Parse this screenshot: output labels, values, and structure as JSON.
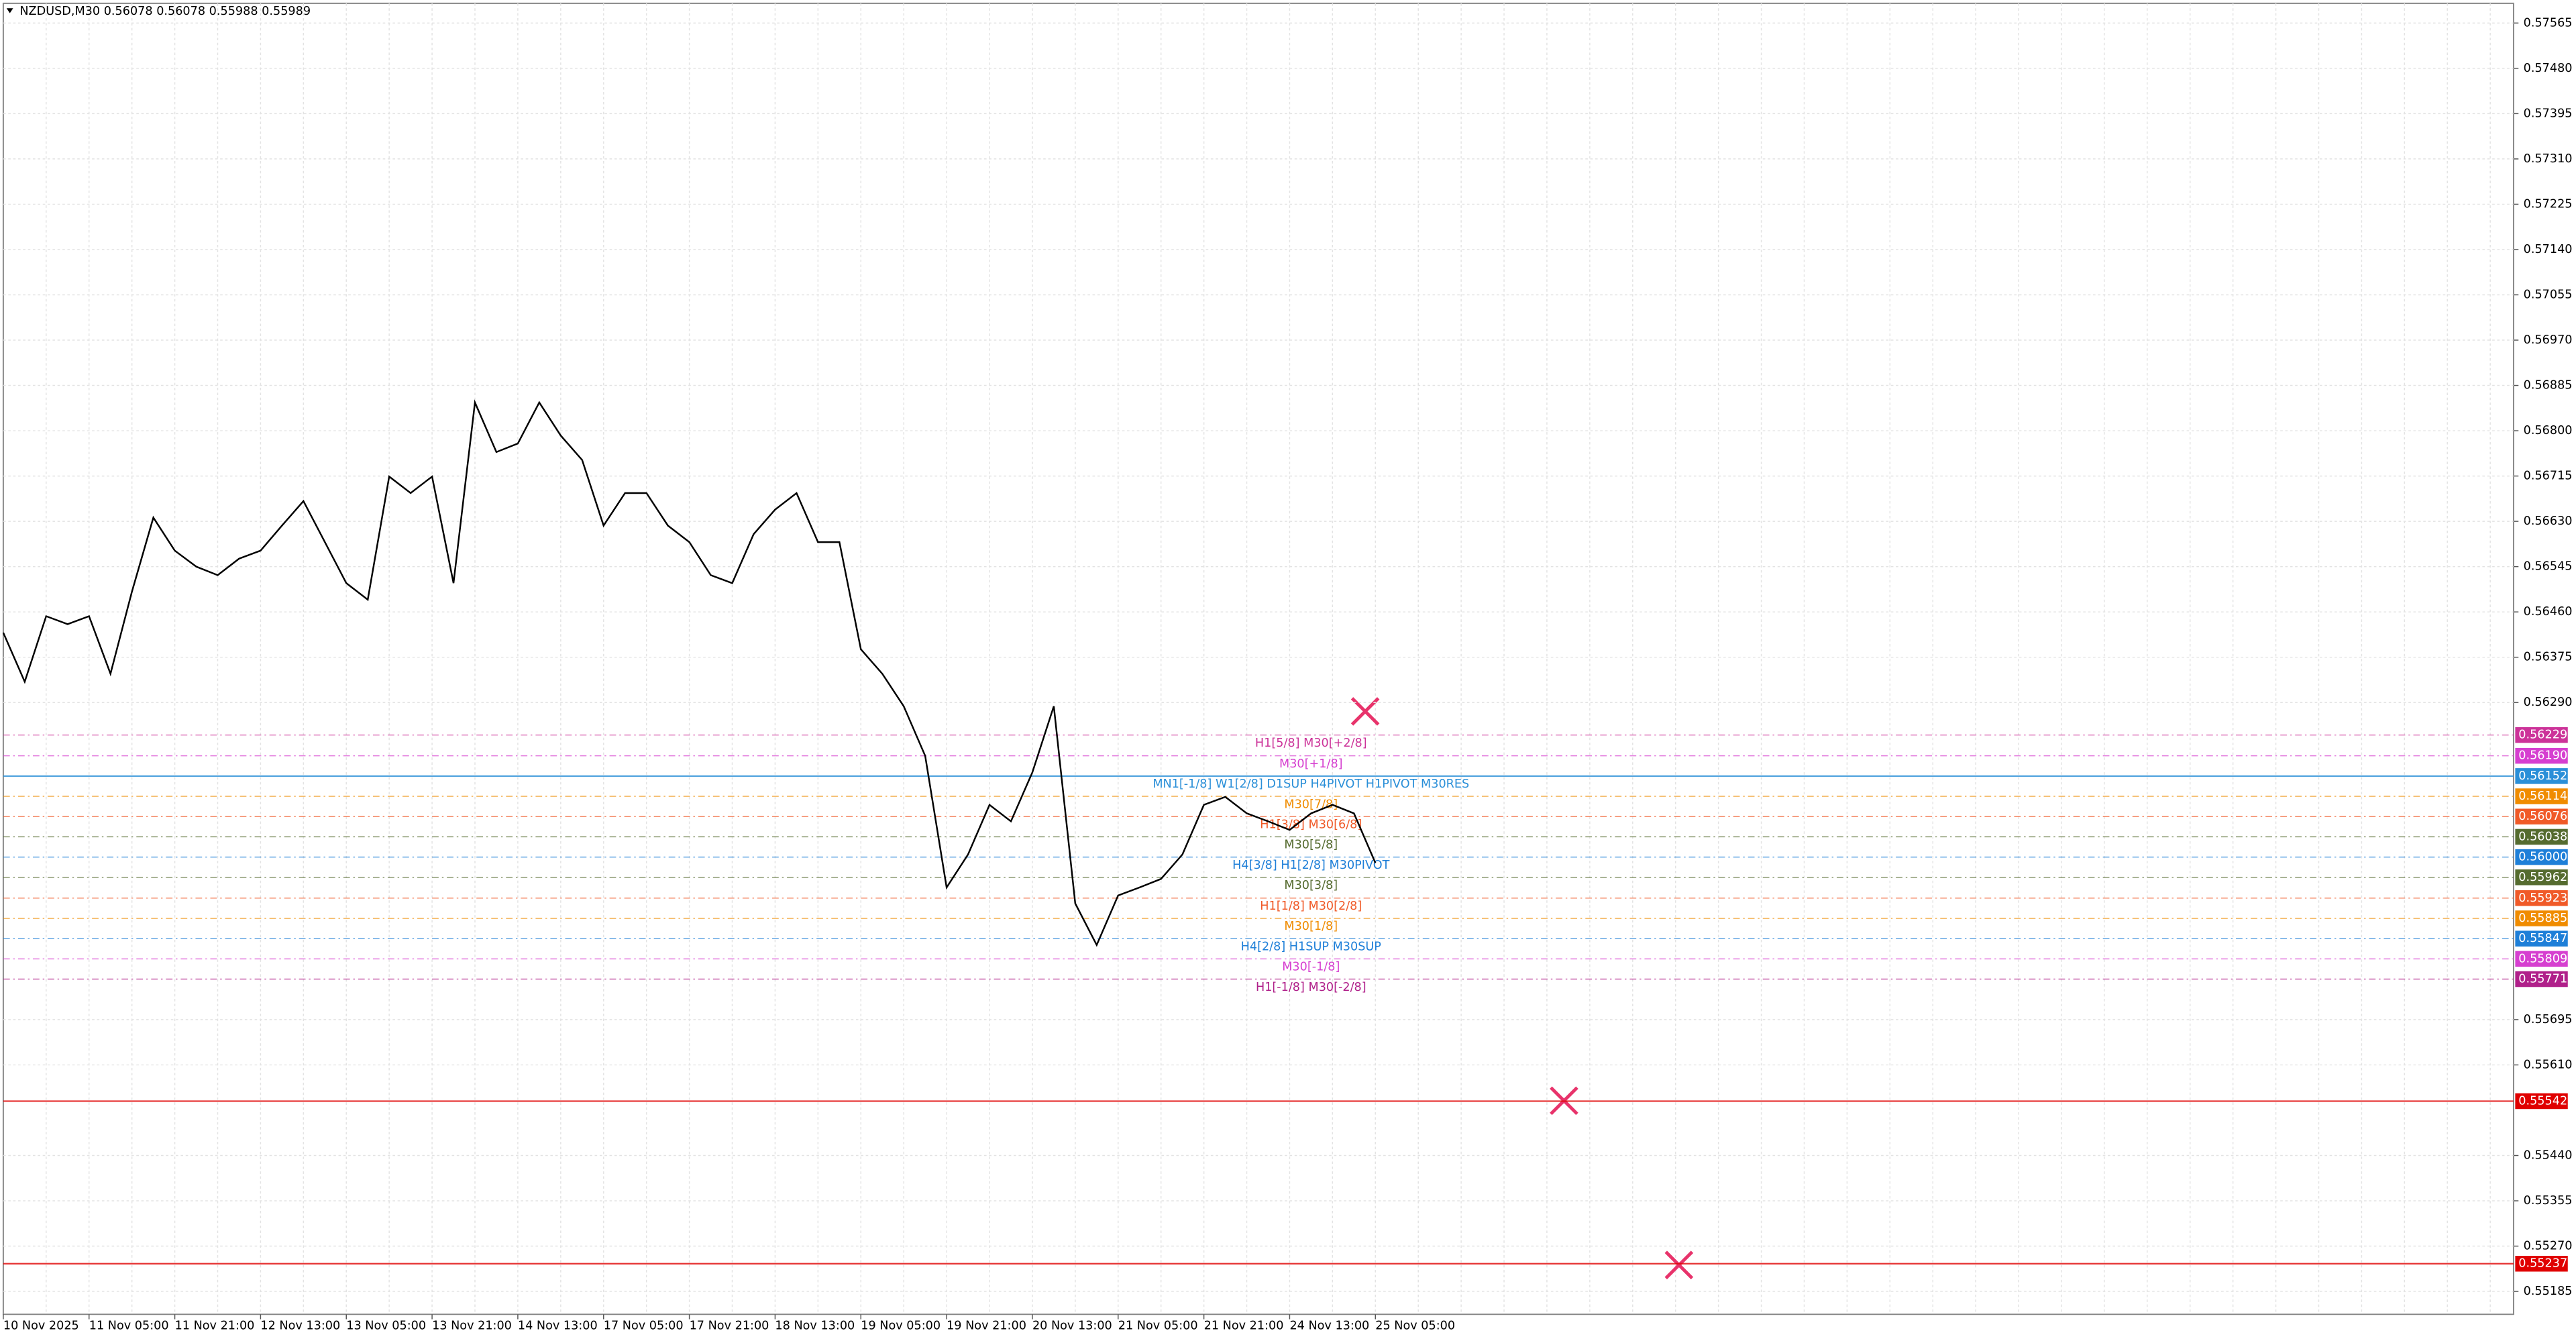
{
  "chart_data": {
    "type": "line",
    "title": "NZDUSD,M30  0.56078 0.56078 0.55988 0.55989",
    "categories": [
      "10 Nov 2025",
      null,
      null,
      null,
      "11 Nov 05:00",
      null,
      null,
      null,
      "11 Nov 21:00",
      null,
      null,
      null,
      "12 Nov 13:00",
      null,
      null,
      null,
      "13 Nov 05:00",
      null,
      null,
      null,
      "13 Nov 21:00",
      null,
      null,
      null,
      "14 Nov 13:00",
      null,
      null,
      null,
      "17 Nov 05:00",
      null,
      null,
      null,
      "17 Nov 21:00",
      null,
      null,
      null,
      "18 Nov 13:00",
      null,
      null,
      null,
      "19 Nov 05:00",
      null,
      null,
      null,
      "19 Nov 21:00",
      null,
      null,
      null,
      "20 Nov 13:00",
      null,
      null,
      null,
      "21 Nov 05:00",
      null,
      null,
      null,
      "21 Nov 21:00",
      null,
      null,
      null,
      "24 Nov 13:00",
      null,
      null,
      null,
      "25 Nov 05:00"
    ],
    "series": [
      {
        "name": "NZDUSD",
        "color": "#000000",
        "values": [
          0.56421,
          0.56329,
          0.56452,
          0.56437,
          0.56452,
          0.56344,
          0.56498,
          0.56637,
          0.56575,
          0.56545,
          0.56529,
          0.5656,
          0.56575,
          0.56622,
          0.56668,
          0.56591,
          0.56514,
          0.56483,
          0.56714,
          0.56683,
          0.56714,
          0.56514,
          0.56853,
          0.5676,
          0.56776,
          0.56853,
          0.56791,
          0.56745,
          0.56622,
          0.56683,
          0.56683,
          0.56622,
          0.56591,
          0.56529,
          0.56514,
          0.56606,
          0.56652,
          0.56683,
          0.56591,
          0.56591,
          0.5639,
          0.56344,
          0.56283,
          0.5619,
          0.55943,
          0.56005,
          0.56098,
          0.56067,
          0.56159,
          0.56283,
          0.55913,
          0.55835,
          0.55928,
          0.55943,
          0.55959,
          0.56005,
          0.56098,
          0.56113,
          0.56082,
          0.56067,
          0.56051,
          0.56082,
          0.56098,
          0.56082,
          0.55989
        ]
      }
    ],
    "ylim": [
      0.55142,
      0.57602
    ],
    "yticks": [
      {
        "value": 0.57565,
        "label": "0.57565"
      },
      {
        "value": 0.5748,
        "label": "0.57480"
      },
      {
        "value": 0.57395,
        "label": "0.57395"
      },
      {
        "value": 0.5731,
        "label": "0.57310"
      },
      {
        "value": 0.57225,
        "label": "0.57225"
      },
      {
        "value": 0.5714,
        "label": "0.57140"
      },
      {
        "value": 0.57055,
        "label": "0.57055"
      },
      {
        "value": 0.5697,
        "label": "0.56970"
      },
      {
        "value": 0.56885,
        "label": "0.56885"
      },
      {
        "value": 0.568,
        "label": "0.56800"
      },
      {
        "value": 0.56715,
        "label": "0.56715"
      },
      {
        "value": 0.5663,
        "label": "0.56630"
      },
      {
        "value": 0.56545,
        "label": "0.56545"
      },
      {
        "value": 0.5646,
        "label": "0.56460"
      },
      {
        "value": 0.56375,
        "label": "0.56375"
      },
      {
        "value": 0.5629,
        "label": "0.56290"
      },
      {
        "value": 0.55695,
        "label": "0.55695"
      },
      {
        "value": 0.5561,
        "label": "0.55610"
      },
      {
        "value": 0.5544,
        "label": "0.55440"
      },
      {
        "value": 0.55355,
        "label": "0.55355"
      },
      {
        "value": 0.5527,
        "label": "0.55270"
      },
      {
        "value": 0.55185,
        "label": "0.55185"
      }
    ],
    "grid": true,
    "levels": [
      {
        "value": 0.56229,
        "value_label": "0.56229",
        "label": "H1[5/8] M30[+2/8]",
        "color": "#cc3399"
      },
      {
        "value": 0.5619,
        "value_label": "0.56190",
        "label": "M30[+1/8]",
        "color": "#d63fd0"
      },
      {
        "value": 0.56152,
        "value_label": "0.56152",
        "label": "MN1[-1/8] W1[2/8] D1SUP H4PIVOT H1PIVOT M30RES",
        "color": "#2a8fd8"
      },
      {
        "value": 0.56114,
        "value_label": "0.56114",
        "label": "M30[7/8]",
        "color": "#f08c00"
      },
      {
        "value": 0.56076,
        "value_label": "0.56076",
        "label": "H1[3/8] M30[6/8]",
        "color": "#f05a28"
      },
      {
        "value": 0.56038,
        "value_label": "0.56038",
        "label": "M30[5/8]",
        "color": "#556b2f"
      },
      {
        "value": 0.56,
        "value_label": "0.56000",
        "label": "H4[3/8] H1[2/8] M30PIVOT",
        "color": "#1e7fd8"
      },
      {
        "value": 0.55962,
        "value_label": "0.55962",
        "label": "M30[3/8]",
        "color": "#556b2f"
      },
      {
        "value": 0.55923,
        "value_label": "0.55923",
        "label": "H1[1/8] M30[2/8]",
        "color": "#f05a28"
      },
      {
        "value": 0.55885,
        "value_label": "0.55885",
        "label": "M30[1/8]",
        "color": "#f08c00"
      },
      {
        "value": 0.55847,
        "value_label": "0.55847",
        "label": "H4[2/8] H1SUP M30SUP",
        "color": "#1e7fd8"
      },
      {
        "value": 0.55809,
        "value_label": "0.55809",
        "label": "M30[-1/8]",
        "color": "#d63fd0"
      },
      {
        "value": 0.55771,
        "value_label": "0.55771",
        "label": "H1[-1/8] M30[-2/8]",
        "color": "#b0208a"
      },
      {
        "value": 0.55542,
        "value_label": "0.55542",
        "color": "#e00000"
      },
      {
        "value": 0.55237,
        "value_label": "0.55237",
        "color": "#e00000"
      }
    ]
  }
}
